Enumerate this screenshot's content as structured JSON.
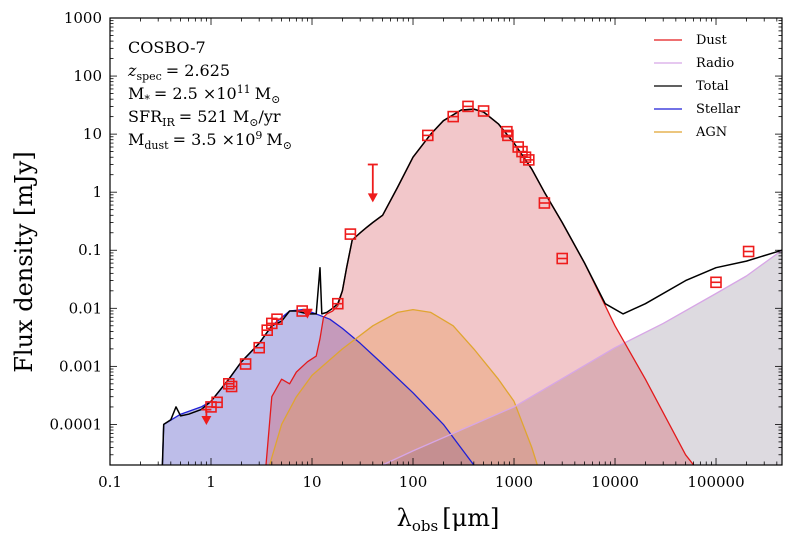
{
  "chart_data": {
    "type": "line",
    "x_scale": "log",
    "y_scale": "log",
    "xlim": [
      0.1,
      450000
    ],
    "ylim": [
      2e-05,
      1000
    ],
    "xlabel_main": "λ",
    "xlabel_sub": "obs",
    "xlabel_unit": "[μm]",
    "ylabel": "Flux density [mJy]",
    "x_ticks": [
      {
        "value": 0.1,
        "label": "0.1"
      },
      {
        "value": 1,
        "label": "1"
      },
      {
        "value": 10,
        "label": "10"
      },
      {
        "value": 100,
        "label": "100"
      },
      {
        "value": 1000,
        "label": "1000"
      },
      {
        "value": 10000,
        "label": "10000"
      },
      {
        "value": 100000,
        "label": "100000"
      }
    ],
    "y_ticks": [
      {
        "value": 0.0001,
        "label": "0.0001"
      },
      {
        "value": 0.001,
        "label": "0.001"
      },
      {
        "value": 0.01,
        "label": "0.01"
      },
      {
        "value": 0.1,
        "label": "0.1"
      },
      {
        "value": 1,
        "label": "1"
      },
      {
        "value": 10,
        "label": "10"
      },
      {
        "value": 100,
        "label": "100"
      },
      {
        "value": 1000,
        "label": "1000"
      }
    ],
    "annotations": {
      "name": "COSBO-7",
      "z_label": "z",
      "z_sub": "spec",
      "z_value": "= 2.625",
      "mstar_label": "M",
      "mstar_sub": "*",
      "mstar_value": "= 2.5 ×10",
      "mstar_exp": "11",
      "mstar_unit": "M",
      "sfr_label": "SFR",
      "sfr_sub": "IR",
      "sfr_value": "= 521 M",
      "sfr_unit": "/yr",
      "mdust_label": "M",
      "mdust_sub": "dust",
      "mdust_value": "= 3.5 ×10",
      "mdust_exp": "9",
      "mdust_unit": "M",
      "sun_symbol": "⊙"
    },
    "legend": [
      {
        "label": "Dust",
        "color": "#e31a1c"
      },
      {
        "label": "Radio",
        "color": "#d7a6e6"
      },
      {
        "label": "Total",
        "color": "#000000"
      },
      {
        "label": "Stellar",
        "color": "#1f1fd6"
      },
      {
        "label": "AGN",
        "color": "#e0a530"
      }
    ],
    "series": [
      {
        "name": "Stellar",
        "color": "#1f1fd6",
        "fill": "rgba(90,90,200,0.40)",
        "points": [
          [
            0.33,
            2e-05
          ],
          [
            0.34,
            0.0001
          ],
          [
            0.5,
            0.00015
          ],
          [
            0.8,
            0.0002
          ],
          [
            1.0,
            0.00025
          ],
          [
            1.5,
            0.0006
          ],
          [
            2.0,
            0.0012
          ],
          [
            3.0,
            0.0025
          ],
          [
            4.0,
            0.005
          ],
          [
            6.0,
            0.009
          ],
          [
            8.0,
            0.0095
          ],
          [
            10.0,
            0.0085
          ],
          [
            15.0,
            0.0065
          ],
          [
            20.0,
            0.0045
          ],
          [
            30.0,
            0.0025
          ],
          [
            50.0,
            0.0011
          ],
          [
            100.0,
            0.00035
          ],
          [
            200.0,
            0.0001
          ],
          [
            400.0,
            2e-05
          ]
        ]
      },
      {
        "name": "AGN",
        "color": "#e0a530",
        "fill": "rgba(240,190,90,0.38)",
        "points": [
          [
            3.8,
            2e-05
          ],
          [
            5.0,
            0.0001
          ],
          [
            7.0,
            0.0003
          ],
          [
            10.0,
            0.0007
          ],
          [
            20.0,
            0.002
          ],
          [
            40.0,
            0.005
          ],
          [
            70.0,
            0.0085
          ],
          [
            100.0,
            0.0095
          ],
          [
            150.0,
            0.0085
          ],
          [
            250.0,
            0.005
          ],
          [
            400.0,
            0.002
          ],
          [
            700.0,
            0.0006
          ],
          [
            1000.0,
            0.00025
          ],
          [
            1500.0,
            4e-05
          ],
          [
            1700.0,
            2e-05
          ]
        ]
      },
      {
        "name": "Radio",
        "color": "#d7a6e6",
        "fill": "rgba(150,140,160,0.32)",
        "points": [
          [
            50.0,
            2e-05
          ],
          [
            100.0,
            3.5e-05
          ],
          [
            1000.0,
            0.0002
          ],
          [
            10000.0,
            0.0021
          ],
          [
            30000.0,
            0.0055
          ],
          [
            100000.0,
            0.018
          ],
          [
            200000.0,
            0.036
          ],
          [
            450000.0,
            0.1
          ]
        ]
      },
      {
        "name": "Dust",
        "color": "#e31a1c",
        "fill": "rgba(215,80,90,0.32)",
        "points": [
          [
            3.5,
            2e-05
          ],
          [
            4.0,
            0.0003
          ],
          [
            5.0,
            0.0006
          ],
          [
            6.0,
            0.0005
          ],
          [
            7.0,
            0.0008
          ],
          [
            9.0,
            0.0012
          ],
          [
            11.0,
            0.0015
          ],
          [
            12.0,
            0.003
          ],
          [
            13.0,
            0.007
          ],
          [
            14.0,
            0.008
          ],
          [
            16.0,
            0.009
          ],
          [
            18.0,
            0.011
          ],
          [
            20.0,
            0.02
          ],
          [
            22.0,
            0.05
          ],
          [
            25.0,
            0.15
          ],
          [
            30.0,
            0.2
          ],
          [
            35.0,
            0.25
          ],
          [
            40.0,
            0.3
          ],
          [
            50.0,
            0.4
          ],
          [
            70.0,
            1.2
          ],
          [
            100.0,
            4.0
          ],
          [
            150.0,
            10.0
          ],
          [
            200.0,
            17.0
          ],
          [
            300.0,
            26.0
          ],
          [
            400.0,
            27.0
          ],
          [
            500.0,
            24.0
          ],
          [
            700.0,
            15.0
          ],
          [
            1000.0,
            7.0
          ],
          [
            1500.0,
            2.5
          ],
          [
            2000.0,
            1.0
          ],
          [
            3000.0,
            0.3
          ],
          [
            5000.0,
            0.06
          ],
          [
            10000.0,
            0.005
          ],
          [
            20000.0,
            0.0006
          ],
          [
            50000.0,
            3e-05
          ],
          [
            60000.0,
            2e-05
          ]
        ]
      },
      {
        "name": "Total",
        "color": "#000000",
        "fill": "none",
        "points": [
          [
            0.33,
            2e-05
          ],
          [
            0.34,
            0.0001
          ],
          [
            0.4,
            0.00012
          ],
          [
            0.45,
            0.0002
          ],
          [
            0.5,
            0.00014
          ],
          [
            0.6,
            0.00015
          ],
          [
            0.8,
            0.00018
          ],
          [
            1.0,
            0.00025
          ],
          [
            1.5,
            0.0006
          ],
          [
            2.0,
            0.0012
          ],
          [
            3.0,
            0.0025
          ],
          [
            4.0,
            0.005
          ],
          [
            5.0,
            0.006
          ],
          [
            6.0,
            0.009
          ],
          [
            7.0,
            0.009
          ],
          [
            9.0,
            0.008
          ],
          [
            11.0,
            0.008
          ],
          [
            12.0,
            0.05
          ],
          [
            12.5,
            0.008
          ],
          [
            14.0,
            0.0085
          ],
          [
            16.0,
            0.01
          ],
          [
            18.0,
            0.012
          ],
          [
            20.0,
            0.02
          ],
          [
            22.0,
            0.05
          ],
          [
            25.0,
            0.15
          ],
          [
            30.0,
            0.2
          ],
          [
            35.0,
            0.25
          ],
          [
            40.0,
            0.3
          ],
          [
            50.0,
            0.4
          ],
          [
            70.0,
            1.2
          ],
          [
            100.0,
            4.0
          ],
          [
            150.0,
            10.0
          ],
          [
            200.0,
            17.0
          ],
          [
            300.0,
            26.0
          ],
          [
            400.0,
            27.0
          ],
          [
            500.0,
            24.0
          ],
          [
            700.0,
            15.0
          ],
          [
            1000.0,
            7.0
          ],
          [
            1500.0,
            2.5
          ],
          [
            2000.0,
            1.0
          ],
          [
            3000.0,
            0.3
          ],
          [
            5000.0,
            0.06
          ],
          [
            8000.0,
            0.012
          ],
          [
            12000.0,
            0.008
          ],
          [
            20000.0,
            0.012
          ],
          [
            50000.0,
            0.03
          ],
          [
            100000.0,
            0.05
          ],
          [
            200000.0,
            0.065
          ],
          [
            450000.0,
            0.1
          ]
        ]
      }
    ],
    "observations": [
      {
        "x": 1.0,
        "y": 0.0002
      },
      {
        "x": 1.15,
        "y": 0.00024
      },
      {
        "x": 1.5,
        "y": 0.0005
      },
      {
        "x": 1.6,
        "y": 0.00045
      },
      {
        "x": 2.2,
        "y": 0.0011
      },
      {
        "x": 3.0,
        "y": 0.0021
      },
      {
        "x": 3.6,
        "y": 0.0042
      },
      {
        "x": 4.0,
        "y": 0.0055
      },
      {
        "x": 4.5,
        "y": 0.0065
      },
      {
        "x": 8.0,
        "y": 0.009
      },
      {
        "x": 18.0,
        "y": 0.012
      },
      {
        "x": 24.0,
        "y": 0.19
      },
      {
        "x": 140.0,
        "y": 9.5
      },
      {
        "x": 250.0,
        "y": 20.0
      },
      {
        "x": 350.0,
        "y": 30.0
      },
      {
        "x": 500.0,
        "y": 25.0
      },
      {
        "x": 850.0,
        "y": 11.0
      },
      {
        "x": 870.0,
        "y": 9.5
      },
      {
        "x": 1100.0,
        "y": 6.0
      },
      {
        "x": 1200.0,
        "y": 5.0
      },
      {
        "x": 1300.0,
        "y": 4.0
      },
      {
        "x": 1400.0,
        "y": 3.6
      },
      {
        "x": 2000.0,
        "y": 0.65
      },
      {
        "x": 3000.0,
        "y": 0.072
      },
      {
        "x": 100000.0,
        "y": 0.028
      },
      {
        "x": 210000.0,
        "y": 0.095
      }
    ],
    "upper_limits": [
      {
        "x": 0.9,
        "y": 0.00011,
        "top": 0.00018
      },
      {
        "x": 9.0,
        "y": 0.0075,
        "top": 0.0095
      },
      {
        "x": 40.0,
        "y": 0.75,
        "top": 3.0
      }
    ],
    "colors": {
      "observation": "#ee1c1c"
    }
  }
}
